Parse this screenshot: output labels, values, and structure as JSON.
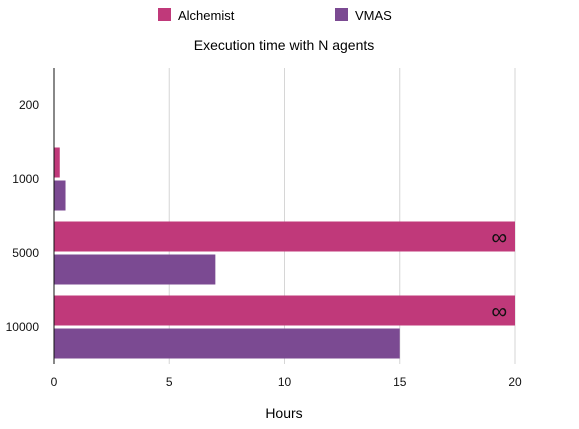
{
  "chart_data": {
    "type": "bar",
    "orientation": "horizontal",
    "title": "Execution time with N agents",
    "xlabel": "Hours",
    "ylabel": "",
    "categories": [
      "200",
      "1000",
      "5000",
      "10000"
    ],
    "series": [
      {
        "name": "Alchemist",
        "color": "#c0397a",
        "values": [
          0,
          0.25,
          20,
          20
        ],
        "annotations": [
          null,
          null,
          "∞",
          "∞"
        ]
      },
      {
        "name": "VMAS",
        "color": "#7b4a92",
        "values": [
          0,
          0.5,
          7,
          15
        ],
        "annotations": [
          null,
          null,
          null,
          null
        ]
      }
    ],
    "xlim": [
      0,
      20
    ],
    "xticks": [
      0,
      5,
      10,
      15,
      20
    ],
    "grid": true,
    "legend_position": "top"
  }
}
